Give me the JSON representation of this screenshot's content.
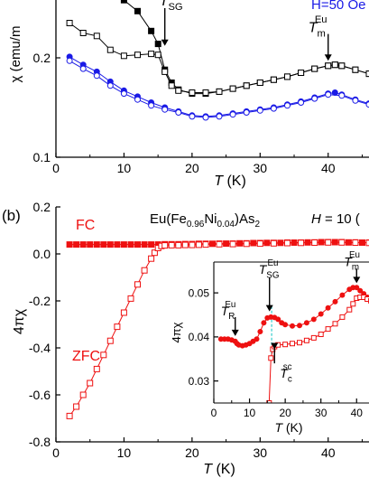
{
  "colors": {
    "black": "#000000",
    "blue": "#1a1ae6",
    "red": "#ee1111",
    "cyan": "#33cccc"
  },
  "chart_data": [
    {
      "id": "a",
      "type": "scatter",
      "partial": true,
      "panel_label": "",
      "legend_partial": "H=50 Oe",
      "xlabel_var": "T",
      "xlabel_unit": " (K)",
      "ylabel": "χ (emu/m",
      "xlim": [
        0,
        46
      ],
      "ylim": [
        0.1,
        0.27
      ],
      "xticks": [
        0,
        10,
        20,
        30,
        40
      ],
      "xtick_labels": [
        "0",
        "10",
        "20",
        "30",
        "40"
      ],
      "yticks": [
        0.1,
        0.2
      ],
      "ytick_labels": [
        "0.1",
        "0.2"
      ],
      "series": [
        {
          "style": "black-filled-square",
          "x": [
            8,
            10,
            12,
            14,
            15,
            16,
            17,
            18,
            20,
            22,
            24,
            26,
            28,
            30,
            32,
            34,
            36,
            38,
            40,
            41,
            42,
            44,
            46
          ],
          "y": [
            0.268,
            0.258,
            0.247,
            0.227,
            0.214,
            0.188,
            0.175,
            0.168,
            0.164,
            0.164,
            0.166,
            0.169,
            0.172,
            0.175,
            0.178,
            0.181,
            0.185,
            0.189,
            0.192,
            0.193,
            0.192,
            0.188,
            0.184
          ]
        },
        {
          "style": "black-open-square",
          "x": [
            2,
            4,
            6,
            8,
            10,
            12,
            14,
            15,
            16,
            17,
            18,
            20,
            22,
            24,
            26,
            28,
            30,
            32,
            34,
            36,
            38,
            40,
            41,
            42,
            44,
            46
          ],
          "y": [
            0.235,
            0.225,
            0.222,
            0.208,
            0.202,
            0.203,
            0.204,
            0.203,
            0.186,
            0.172,
            0.167,
            0.165,
            0.165,
            0.166,
            0.169,
            0.172,
            0.175,
            0.178,
            0.181,
            0.185,
            0.189,
            0.192,
            0.193,
            0.192,
            0.188,
            0.184
          ]
        },
        {
          "style": "blue-filled-circle",
          "x": [
            2,
            4,
            6,
            8,
            10,
            12,
            14,
            16,
            18,
            20,
            22,
            24,
            26,
            28,
            30,
            32,
            34,
            36,
            38,
            40,
            41,
            42,
            44,
            46
          ],
          "y": [
            0.201,
            0.193,
            0.186,
            0.176,
            0.167,
            0.161,
            0.155,
            0.15,
            0.146,
            0.142,
            0.141,
            0.142,
            0.144,
            0.146,
            0.148,
            0.15,
            0.153,
            0.156,
            0.16,
            0.164,
            0.165,
            0.163,
            0.158,
            0.154
          ]
        },
        {
          "style": "blue-open-circle",
          "x": [
            2,
            4,
            6,
            8,
            10,
            12,
            14,
            16,
            18,
            20,
            22,
            24,
            26,
            28,
            30,
            32,
            34,
            36,
            38,
            40,
            42,
            44,
            46
          ],
          "y": [
            0.197,
            0.189,
            0.182,
            0.172,
            0.164,
            0.158,
            0.152,
            0.148,
            0.145,
            0.141,
            0.14,
            0.141,
            0.143,
            0.145,
            0.147,
            0.149,
            0.152,
            0.155,
            0.159,
            0.163,
            0.162,
            0.157,
            0.153
          ]
        }
      ],
      "annotations": [
        {
          "var": "T",
          "sub": "SG",
          "sup": "Eu",
          "arrow_x": 16,
          "arrow_y_from": 0.25,
          "arrow_y_to": 0.212
        },
        {
          "var": "T",
          "sub": "m",
          "sup": "Eu",
          "arrow_x": 40,
          "arrow_y_from": 0.224,
          "arrow_y_to": 0.197
        }
      ]
    },
    {
      "id": "b",
      "type": "scatter",
      "panel_label": "(b)",
      "title_parts": [
        "Eu(Fe",
        "0.96",
        "Ni",
        "0.04",
        ")As",
        "2"
      ],
      "field_label_partial": "H",
      "field_value_partial": " = 10 (",
      "xlabel_var": "T",
      "xlabel_unit": " (K)",
      "ylabel": "4πχ",
      "xlim": [
        0,
        46
      ],
      "ylim": [
        -0.8,
        0.2
      ],
      "xticks": [
        0,
        10,
        20,
        30,
        40
      ],
      "xtick_labels": [
        "0",
        "10",
        "20",
        "30",
        "40"
      ],
      "yticks": [
        -0.8,
        -0.6,
        -0.4,
        -0.2,
        0.0,
        0.2
      ],
      "ytick_labels": [
        "-0.8",
        "-0.6",
        "-0.4",
        "-0.2",
        "0.0",
        "0.2"
      ],
      "labels": {
        "fc": "FC",
        "zfc": "ZFC"
      },
      "series": [
        {
          "name": "FC",
          "style": "red-filled-square",
          "x": [
            2,
            3,
            4,
            5,
            6,
            7,
            8,
            9,
            10,
            11,
            12,
            13,
            14,
            15,
            16,
            17,
            18,
            19,
            20,
            21,
            22,
            23,
            24,
            25,
            26,
            27,
            28,
            29,
            30,
            31,
            32,
            33,
            34,
            35,
            36,
            37,
            38,
            39,
            40,
            41,
            42,
            43,
            44,
            45,
            46
          ],
          "y": [
            0.04,
            0.04,
            0.04,
            0.04,
            0.04,
            0.04,
            0.04,
            0.04,
            0.04,
            0.04,
            0.04,
            0.04,
            0.04,
            0.04,
            0.041,
            0.041,
            0.041,
            0.042,
            0.042,
            0.043,
            0.043,
            0.043,
            0.044,
            0.044,
            0.044,
            0.045,
            0.045,
            0.046,
            0.046,
            0.047,
            0.047,
            0.047,
            0.048,
            0.048,
            0.048,
            0.049,
            0.049,
            0.05,
            0.05,
            0.05,
            0.05,
            0.049,
            0.049,
            0.048,
            0.048
          ]
        },
        {
          "name": "ZFC",
          "style": "red-open-square",
          "x": [
            2,
            3,
            4,
            5,
            6,
            7,
            8,
            9,
            10,
            11,
            12,
            13,
            14,
            14.5,
            15,
            15.5,
            16,
            17,
            18,
            19,
            20,
            21,
            22,
            24,
            26,
            28,
            30,
            32,
            34,
            36,
            38,
            40,
            42,
            44,
            46
          ],
          "y": [
            -0.69,
            -0.65,
            -0.6,
            -0.55,
            -0.49,
            -0.43,
            -0.37,
            -0.31,
            -0.25,
            -0.19,
            -0.13,
            -0.07,
            -0.02,
            0.005,
            0.025,
            0.034,
            0.036,
            0.037,
            0.037,
            0.038,
            0.038,
            0.039,
            0.04,
            0.041,
            0.042,
            0.043,
            0.044,
            0.045,
            0.046,
            0.047,
            0.048,
            0.049,
            0.049,
            0.048,
            0.047
          ]
        }
      ]
    },
    {
      "id": "b-inset",
      "type": "scatter",
      "xlabel_var": "T",
      "xlabel_unit": " (K)",
      "ylabel": "4πχ",
      "xlim": [
        0,
        46
      ],
      "ylim": [
        0.025,
        0.057
      ],
      "xticks": [
        0,
        10,
        20,
        30,
        40
      ],
      "xtick_labels": [
        "0",
        "10",
        "20",
        "30",
        "40"
      ],
      "yticks": [
        0.03,
        0.04,
        0.05
      ],
      "ytick_labels": [
        "0.03",
        "0.04",
        "0.05"
      ],
      "series": [
        {
          "name": "FC",
          "style": "red-filled-circle",
          "x": [
            2,
            3,
            4,
            5,
            6,
            6.5,
            7,
            8,
            9,
            10,
            11,
            12,
            13,
            14,
            15,
            16,
            17,
            18,
            19,
            20,
            22,
            24,
            26,
            28,
            30,
            32,
            34,
            36,
            38,
            39,
            40,
            41,
            42,
            43,
            44,
            45,
            46
          ],
          "y": [
            0.0395,
            0.0395,
            0.0395,
            0.0393,
            0.039,
            0.0385,
            0.0382,
            0.038,
            0.0382,
            0.0385,
            0.039,
            0.0395,
            0.0412,
            0.0432,
            0.0443,
            0.0445,
            0.0444,
            0.044,
            0.0432,
            0.0428,
            0.0425,
            0.0426,
            0.0432,
            0.044,
            0.0452,
            0.0466,
            0.048,
            0.0495,
            0.0508,
            0.0512,
            0.0512,
            0.0505,
            0.0498,
            0.049,
            0.0485,
            0.0482,
            0.0478
          ]
        },
        {
          "name": "ZFC",
          "style": "red-open-square",
          "x": [
            15.5,
            16,
            16.5,
            17,
            18,
            20,
            22,
            24,
            26,
            28,
            30,
            32,
            34,
            36,
            38,
            39,
            40,
            41,
            42,
            43,
            44,
            45,
            46
          ],
          "y": [
            0.025,
            0.0352,
            0.0372,
            0.0378,
            0.0382,
            0.0383,
            0.0385,
            0.0387,
            0.0392,
            0.0398,
            0.0406,
            0.0418,
            0.043,
            0.0445,
            0.0462,
            0.0475,
            0.0488,
            0.049,
            0.049,
            0.0486,
            0.0482,
            0.0478,
            0.0475
          ]
        }
      ],
      "annotations": [
        {
          "var": "T",
          "sub": "R",
          "sup": "Eu",
          "arrow_x": 6,
          "arrow_y_from": 0.0445,
          "arrow_y_to": 0.0402
        },
        {
          "var": "T",
          "sub": "SG",
          "sup": "Eu",
          "arrow_x": 15.6,
          "arrow_y_from": 0.0535,
          "arrow_y_to": 0.0458
        },
        {
          "var": "T",
          "sub": "m",
          "sup": "Eu",
          "arrow_x": 40,
          "arrow_y_from": 0.0555,
          "arrow_y_to": 0.0522
        },
        {
          "var": "T",
          "sub": "c",
          "sup": "sc",
          "arrow_x": 17,
          "arrow_y_from": 0.034,
          "arrow_y_to": 0.0372
        }
      ],
      "guide_x": 16.2
    }
  ]
}
